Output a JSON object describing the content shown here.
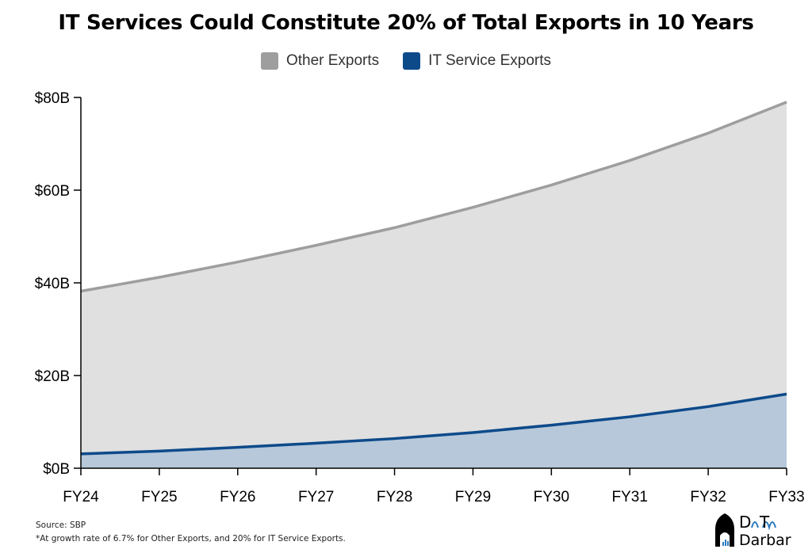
{
  "chart_data": {
    "type": "area",
    "stacked": true,
    "title": "IT Services Could Constitute 20% of Total Exports in 10 Years",
    "categories": [
      "FY24",
      "FY25",
      "FY26",
      "FY27",
      "FY28",
      "FY29",
      "FY30",
      "FY31",
      "FY32",
      "FY33"
    ],
    "series": [
      {
        "name": "Other Exports",
        "color": "#9e9e9e",
        "fill": "#e0e0e0",
        "values": [
          35.1,
          37.5,
          40.0,
          42.7,
          45.5,
          48.6,
          51.8,
          55.3,
          59.0,
          63.0
        ]
      },
      {
        "name": "IT Service Exports",
        "color": "#0d4a8a",
        "fill": "#b6c8da",
        "values": [
          3.1,
          3.7,
          4.5,
          5.4,
          6.4,
          7.7,
          9.3,
          11.1,
          13.3,
          16.0
        ]
      }
    ],
    "ylim": [
      0,
      80
    ],
    "yticks": [
      0,
      20,
      40,
      60,
      80
    ],
    "ytick_labels": [
      "$0B",
      "$20B",
      "$40B",
      "$60B",
      "$80B"
    ],
    "legend_position": "top",
    "grid": false
  },
  "footer": {
    "source": "Source: SBP",
    "note": "*At growth rate of 6.7% for Other Exports, and 20% for IT Service Exports."
  },
  "logo": {
    "text": "DaTa Darbar"
  }
}
